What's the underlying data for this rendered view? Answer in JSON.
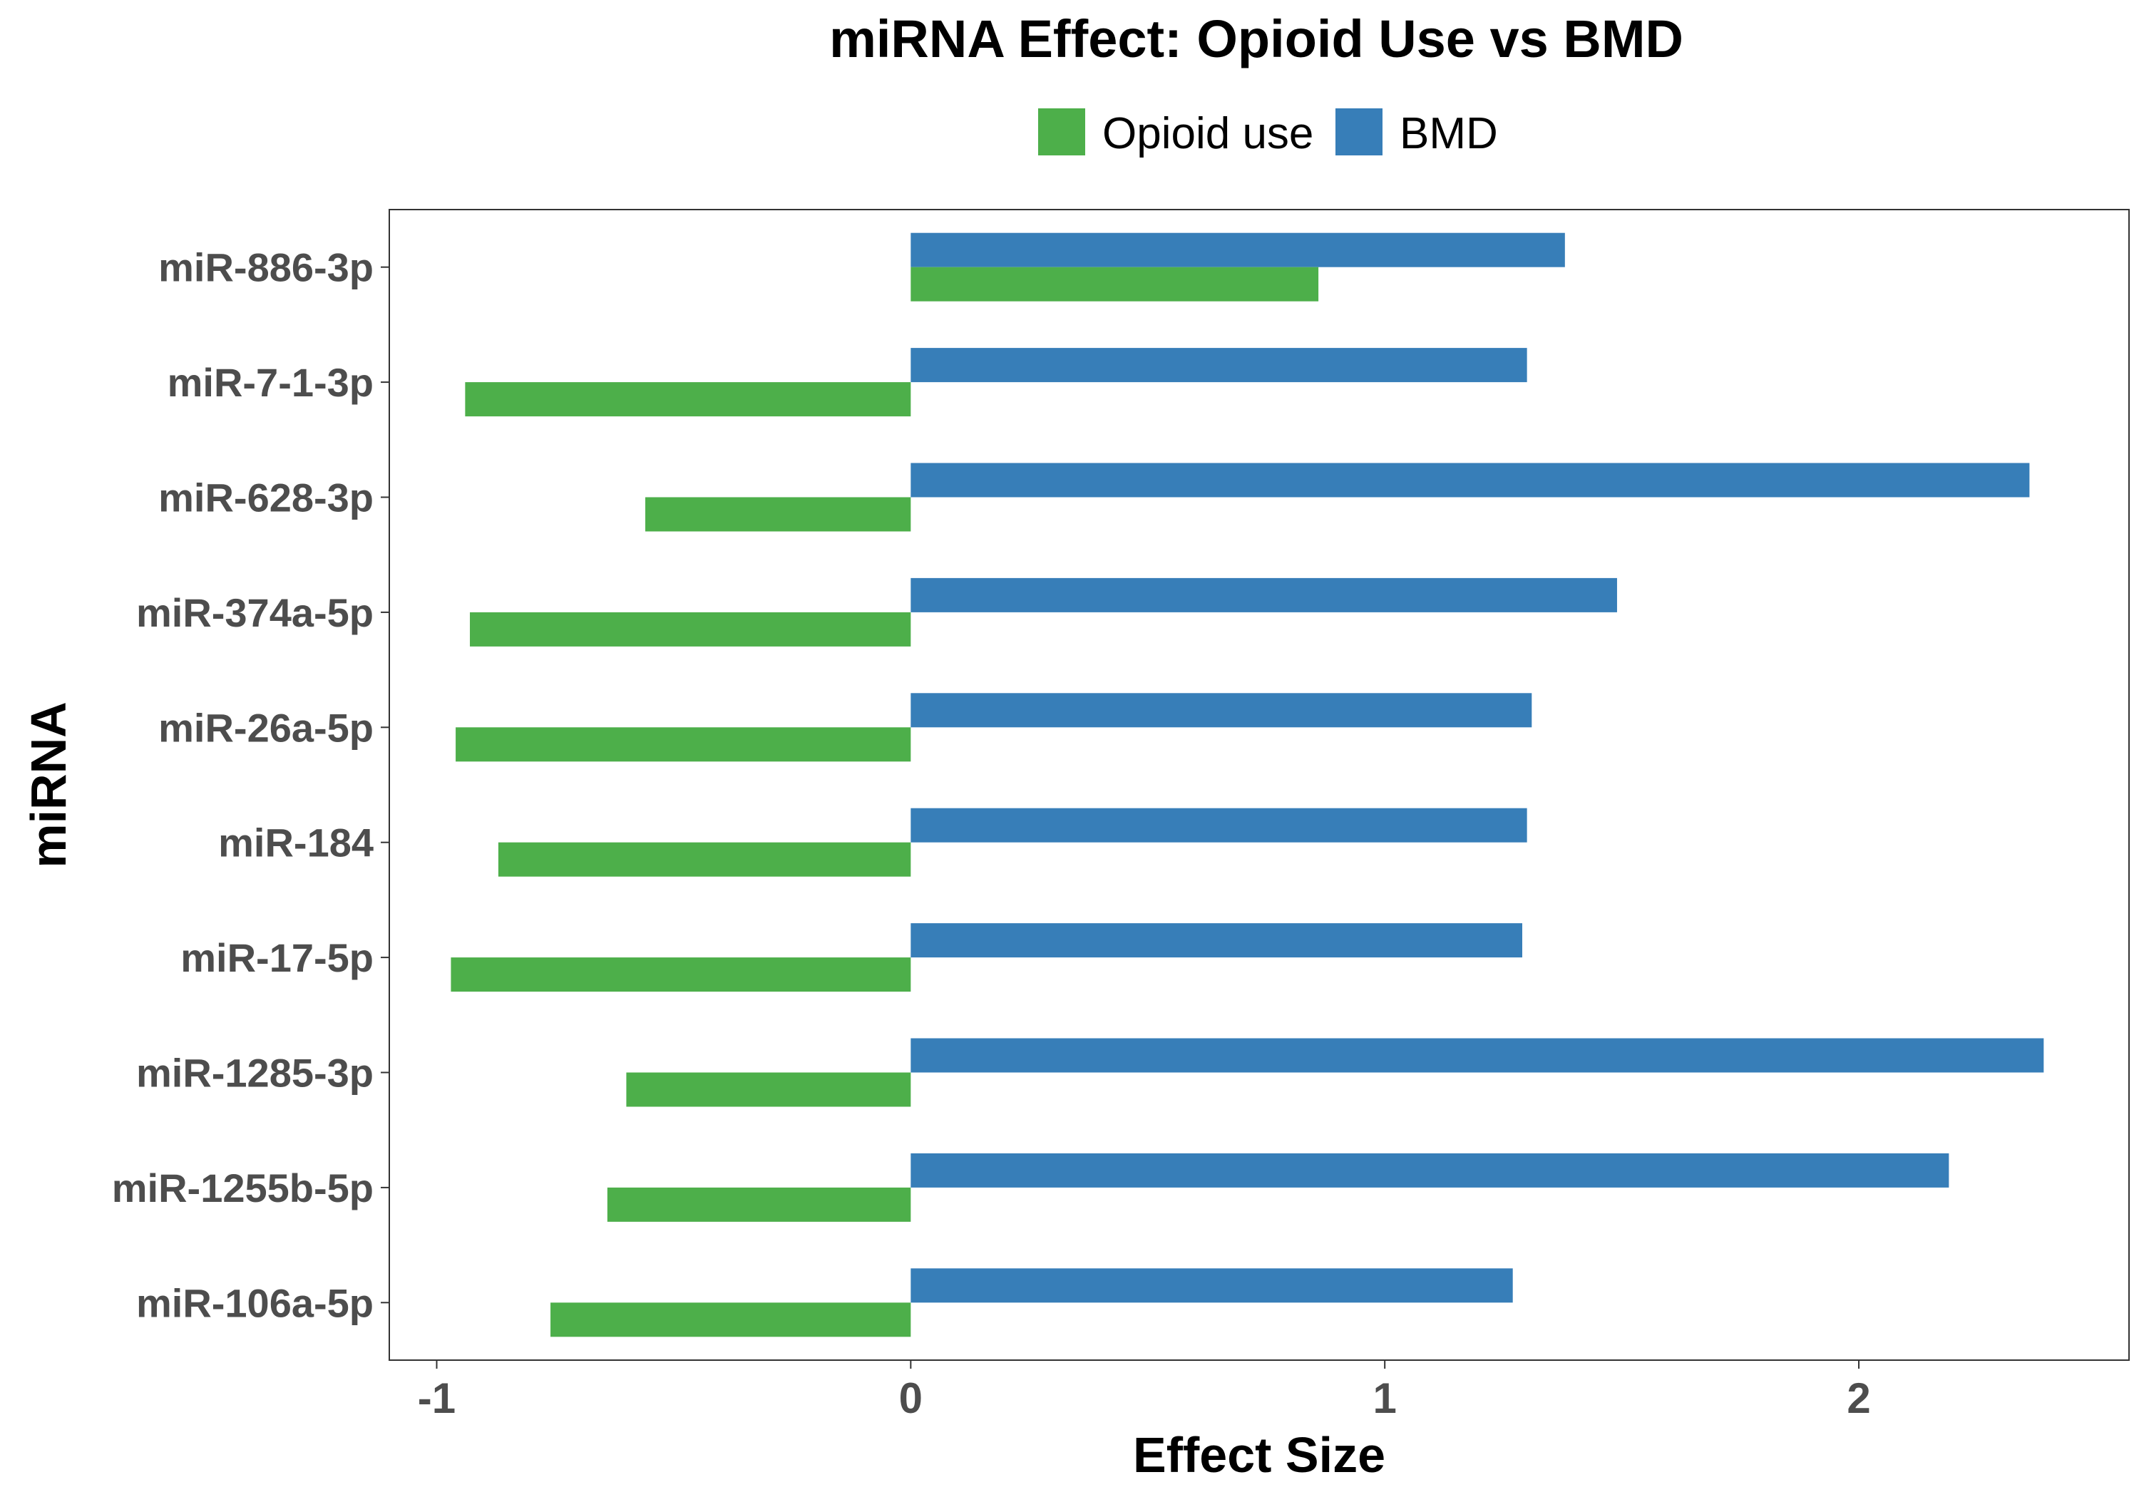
{
  "chart_data": {
    "type": "bar",
    "orientation": "horizontal",
    "title": "miRNA Effect: Opioid Use vs BMD",
    "xlabel": "Effect Size",
    "ylabel": "miRNA",
    "xlim": [
      -1.1,
      2.57
    ],
    "xticks": [
      "-1",
      "0",
      "1",
      "2"
    ],
    "xtick_values": [
      -1,
      0,
      1,
      2
    ],
    "grid": false,
    "legend_position": "top",
    "categories": [
      "miR-886-3p",
      "miR-7-1-3p",
      "miR-628-3p",
      "miR-374a-5p",
      "miR-26a-5p",
      "miR-184",
      "miR-17-5p",
      "miR-1285-3p",
      "miR-1255b-5p",
      "miR-106a-5p"
    ],
    "series": [
      {
        "name": "Opioid use",
        "color": "#4daf4a",
        "values": [
          0.86,
          -0.94,
          -0.56,
          -0.93,
          -0.96,
          -0.87,
          -0.97,
          -0.6,
          -0.64,
          -0.76
        ]
      },
      {
        "name": "BMD",
        "color": "#377eb8",
        "values": [
          1.38,
          1.3,
          2.36,
          1.49,
          1.31,
          1.3,
          1.29,
          2.39,
          2.19,
          1.27
        ]
      }
    ]
  }
}
